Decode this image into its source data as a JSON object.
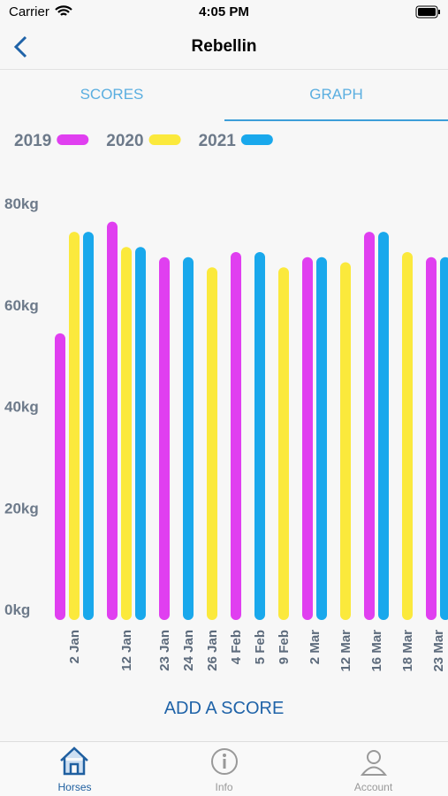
{
  "status_bar": {
    "carrier": "Carrier",
    "time": "4:05 PM"
  },
  "nav": {
    "title": "Rebellin"
  },
  "tabs": [
    "SCORES",
    "GRAPH"
  ],
  "chart_data": {
    "type": "bar",
    "categories": [
      "2 Jan",
      "12 Jan",
      "23 Jan",
      "24 Jan",
      "26 Jan",
      "4 Feb",
      "5 Feb",
      "9 Feb",
      "2 Mar",
      "12 Mar",
      "16 Mar",
      "18 Mar",
      "23 Mar"
    ],
    "series": [
      {
        "name": "2019",
        "color": "#e03ff0",
        "values": [
          56.5,
          78.5,
          71.5,
          null,
          null,
          72.5,
          null,
          null,
          71.5,
          null,
          76.5,
          null,
          71.5
        ]
      },
      {
        "name": "2020",
        "color": "#fbe93c",
        "values": [
          76.5,
          73.5,
          null,
          null,
          69.5,
          null,
          null,
          69.5,
          null,
          70.5,
          null,
          72.5,
          null
        ]
      },
      {
        "name": "2021",
        "color": "#19a8ec",
        "values": [
          76.5,
          73.5,
          null,
          71.5,
          null,
          null,
          72.5,
          null,
          71.5,
          null,
          76.5,
          null,
          71.5
        ]
      }
    ],
    "ylim": [
      0,
      80
    ],
    "yticks": [
      {
        "value": 0,
        "label": "0kg"
      },
      {
        "value": 20,
        "label": "20kg"
      },
      {
        "value": 40,
        "label": "40kg"
      },
      {
        "value": 60,
        "label": "60kg"
      },
      {
        "value": 80,
        "label": "80kg"
      }
    ]
  },
  "button": "ADD A SCORE",
  "tab_bar": [
    "Horses",
    "Info",
    "Account"
  ]
}
